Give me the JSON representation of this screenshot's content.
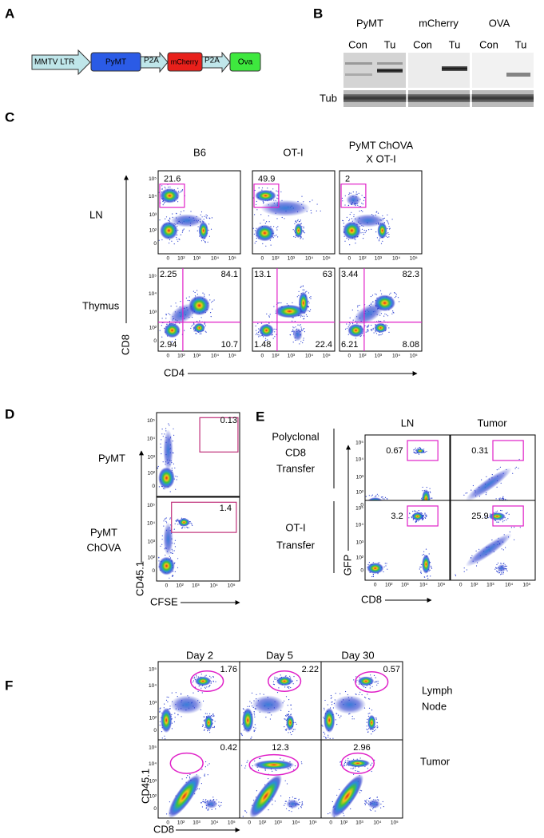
{
  "panel_labels": [
    "A",
    "B",
    "C",
    "D",
    "E",
    "F"
  ],
  "construct": [
    "MMTV LTR",
    "PyMT",
    "P2A",
    "mCherry",
    "P2A",
    "Ova"
  ],
  "blot": {
    "groups": [
      "PyMT",
      "mCherry",
      "OVA"
    ],
    "lanes": [
      "Con",
      "Tu"
    ],
    "loading": "Tub"
  },
  "axis_ticks": [
    "0",
    "10²",
    "10³",
    "10⁴",
    "10⁵"
  ],
  "panel_c": {
    "columns": [
      [
        "B6"
      ],
      [
        "OT-I"
      ],
      [
        "PyMT ChOVA",
        "X OT-I"
      ]
    ],
    "rows": [
      "LN",
      "Thymus"
    ],
    "y_axis": "CD8",
    "x_axis": "CD4",
    "ln_gates": [
      21.6,
      49.9,
      2
    ],
    "thymus_quadrants": [
      [
        2.25,
        84.1,
        2.94,
        10.7
      ],
      [
        13.1,
        63,
        1.48,
        22.4
      ],
      [
        3.44,
        82.3,
        6.21,
        8.08
      ]
    ]
  },
  "panel_d": {
    "rows": [
      [
        "PyMT"
      ],
      [
        "PyMT",
        "ChOVA"
      ]
    ],
    "y_axis": "CD45.1",
    "x_axis": "CFSE",
    "gates": [
      0.13,
      1.4
    ]
  },
  "panel_e": {
    "columns": [
      "LN",
      "Tumor"
    ],
    "rows": [
      [
        "Polyclonal",
        "CD8",
        "Transfer"
      ],
      [
        "OT-I",
        "Transfer"
      ]
    ],
    "y_axis": "GFP",
    "x_axis": "CD8",
    "gates": [
      [
        0.67,
        0.31
      ],
      [
        3.2,
        25.9
      ]
    ]
  },
  "panel_f": {
    "columns": [
      "Day 2",
      "Day 5",
      "Day 30"
    ],
    "rows": [
      [
        "Lymph",
        "Node"
      ],
      [
        "Tumor"
      ]
    ],
    "y_axis": "CD45.1",
    "x_axis": "CD8",
    "gates": [
      [
        1.76,
        2.22,
        0.57
      ],
      [
        0.42,
        12.3,
        2.96
      ]
    ]
  }
}
